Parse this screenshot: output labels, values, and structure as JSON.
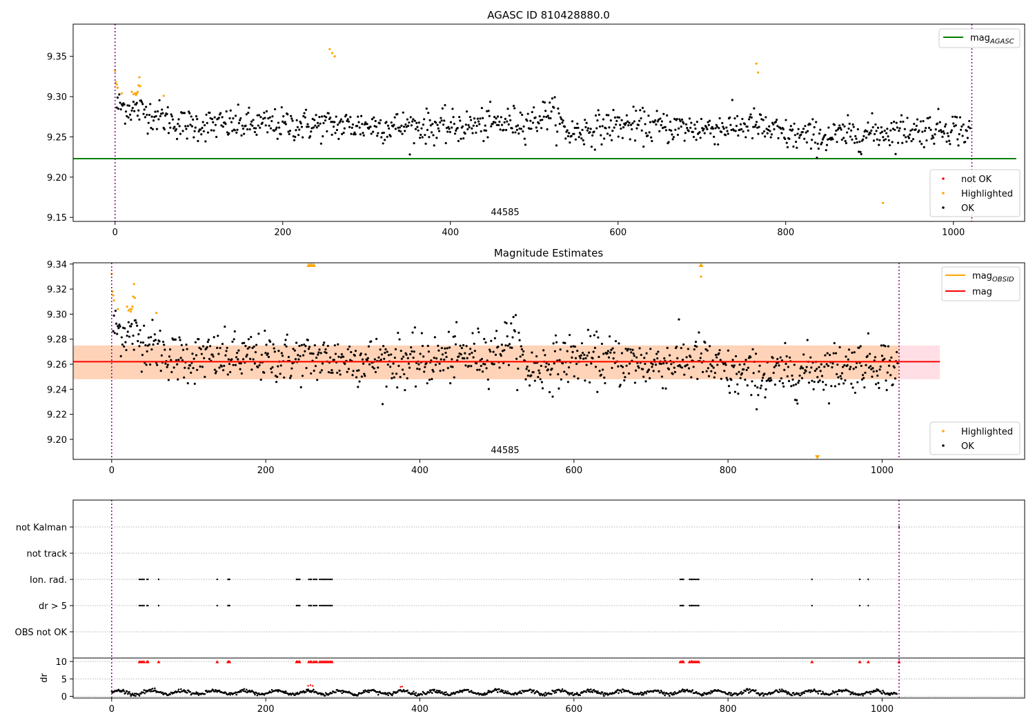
{
  "chart_data": [
    {
      "type": "scatter",
      "title": "AGASC ID 810428880.0",
      "xlim": [
        -50,
        1085
      ],
      "ylim": [
        9.145,
        9.39
      ],
      "x_ticks": [
        0,
        200,
        400,
        600,
        800,
        1000
      ],
      "y_ticks": [
        9.15,
        9.2,
        9.25,
        9.3,
        9.35
      ],
      "x_tick_labels": [
        "0",
        "200",
        "400",
        "600",
        "800",
        "1000"
      ],
      "y_tick_labels": [
        "9.15",
        "9.20",
        "9.25",
        "9.30",
        "9.35"
      ],
      "vlines": [
        0,
        1022
      ],
      "obsid_label": "44585",
      "lines": [
        {
          "name_main": "mag",
          "name_sub": "AGASC",
          "color": "#008000",
          "y": 9.223,
          "x_range": [
            -50,
            1075
          ]
        }
      ],
      "legend_lines_placement": "upper right",
      "legend_points_placement": "lower right",
      "legend_points": [
        {
          "label": "not OK",
          "color": "#ff0000"
        },
        {
          "label": "Highlighted",
          "color": "#ffa500"
        },
        {
          "label": "OK",
          "color": "#000000"
        }
      ],
      "ok_points": {
        "color": "#000000",
        "n": 1020,
        "x_range": [
          2,
          1020
        ],
        "profile_x": [
          0,
          40,
          80,
          120,
          200,
          300,
          400,
          500,
          520,
          540,
          600,
          700,
          760,
          800,
          850,
          900,
          1000,
          1020
        ],
        "profile_y": [
          9.29,
          9.28,
          9.265,
          9.265,
          9.265,
          9.264,
          9.262,
          9.27,
          9.282,
          9.255,
          9.265,
          9.26,
          9.265,
          9.252,
          9.25,
          9.255,
          9.262,
          9.255
        ],
        "spread": 0.01
      },
      "highlighted_points": {
        "color": "#ffa500",
        "x": [
          0,
          1,
          2,
          3,
          8,
          20,
          22,
          24,
          25,
          26,
          27,
          28,
          29,
          30,
          58,
          256,
          259,
          262,
          765,
          767,
          916
        ],
        "y": [
          9.332,
          9.318,
          9.315,
          9.311,
          9.304,
          9.306,
          9.303,
          9.304,
          9.302,
          9.304,
          9.306,
          9.314,
          9.324,
          9.313,
          9.301,
          9.359,
          9.354,
          9.35,
          9.341,
          9.33,
          9.168
        ]
      }
    },
    {
      "type": "scatter",
      "title": "Magnitude Estimates",
      "xlim": [
        -50,
        1185
      ],
      "ylim": [
        9.184,
        9.341
      ],
      "x_ticks": [
        0,
        200,
        400,
        600,
        800,
        1000
      ],
      "y_ticks": [
        9.2,
        9.22,
        9.24,
        9.26,
        9.28,
        9.3,
        9.32,
        9.34
      ],
      "x_tick_labels": [
        "0",
        "200",
        "400",
        "600",
        "800",
        "1000"
      ],
      "y_tick_labels": [
        "9.20",
        "9.22",
        "9.24",
        "9.26",
        "9.28",
        "9.30",
        "9.32",
        "9.34"
      ],
      "vlines": [
        0,
        1022
      ],
      "obsid_label": "44585",
      "band_pink": {
        "y": [
          9.248,
          9.275
        ],
        "x": [
          -50,
          1075
        ],
        "color": "#ffc0cb"
      },
      "band_orange": {
        "y": [
          9.248,
          9.275
        ],
        "x": [
          -50,
          1022
        ],
        "color": "#ffa500"
      },
      "lines": [
        {
          "name_main": "mag",
          "name_sub": "OBSID",
          "color": "#ffa500",
          "y": 9.262,
          "x_range": [
            0,
            1022
          ]
        },
        {
          "name_main": "mag",
          "name_sub": "",
          "color": "#ff0000",
          "y": 9.262,
          "x_range": [
            -50,
            1075
          ]
        }
      ],
      "legend_lines_placement": "upper right",
      "legend_points_placement": "lower right",
      "legend_points": [
        {
          "label": "Highlighted",
          "color": "#ffa500"
        },
        {
          "label": "OK",
          "color": "#000000"
        }
      ],
      "highlighted_points": {
        "color": "#ffa500",
        "x": [
          0,
          1,
          2,
          3,
          8,
          20,
          22,
          24,
          25,
          26,
          27,
          28,
          29,
          30,
          58,
          765
        ],
        "y": [
          9.332,
          9.318,
          9.315,
          9.311,
          9.304,
          9.306,
          9.303,
          9.304,
          9.302,
          9.304,
          9.306,
          9.314,
          9.324,
          9.313,
          9.301,
          9.33
        ]
      },
      "offscale_up": {
        "color": "#ffa500",
        "x": [
          256,
          259,
          262,
          765
        ]
      },
      "offscale_down": {
        "color": "#ffa500",
        "x": [
          916
        ]
      }
    },
    {
      "type": "scatter",
      "title": "",
      "xlim": [
        -50,
        1185
      ],
      "categories": [
        "OBS not OK",
        "dr > 5",
        "Ion. rad.",
        "not track",
        "not Kalman"
      ],
      "events": {
        "dr > 5": [
          36,
          38,
          40,
          42,
          46,
          47,
          61,
          137,
          151,
          152,
          153,
          240,
          241,
          243,
          244,
          256,
          258,
          259,
          262,
          264,
          266,
          270,
          272,
          274,
          276,
          278,
          280,
          282,
          284,
          286,
          738,
          740,
          741,
          742,
          750,
          752,
          753,
          754,
          756,
          758,
          760,
          762,
          909,
          971,
          982
        ],
        "Ion. rad.": [
          36,
          38,
          40,
          42,
          46,
          47,
          61,
          137,
          151,
          152,
          153,
          240,
          241,
          243,
          244,
          256,
          258,
          259,
          262,
          264,
          266,
          270,
          272,
          274,
          276,
          278,
          280,
          282,
          284,
          286,
          738,
          740,
          741,
          742,
          750,
          752,
          753,
          754,
          756,
          758,
          760,
          762,
          909,
          971,
          982
        ],
        "not Kalman": [
          1022
        ]
      },
      "dr_panel": {
        "ylabel": "dr",
        "ylim": [
          -0.5,
          11
        ],
        "y_ticks": [
          0,
          5,
          10
        ],
        "y_tick_labels": [
          "0",
          "5",
          "10"
        ],
        "clip_value": 10,
        "clip_color": "#ff0000",
        "clipped_x": [
          36,
          38,
          40,
          42,
          46,
          47,
          61,
          137,
          151,
          152,
          153,
          240,
          241,
          243,
          244,
          256,
          258,
          259,
          262,
          264,
          266,
          270,
          272,
          274,
          276,
          278,
          280,
          282,
          284,
          286,
          738,
          740,
          741,
          742,
          750,
          752,
          753,
          754,
          756,
          758,
          760,
          762,
          909,
          971,
          982,
          1022
        ],
        "red_points": {
          "x": [
            255,
            258,
            261,
            375,
            377
          ],
          "y": [
            3.0,
            3.2,
            3.0,
            2.7,
            2.8
          ]
        },
        "trace_color": "#000000"
      },
      "x_ticks": [
        0,
        200,
        400,
        600,
        800,
        1000
      ],
      "x_tick_labels": [
        "0",
        "200",
        "400",
        "600",
        "800",
        "1000"
      ],
      "vlines": [
        0,
        1022
      ]
    }
  ]
}
